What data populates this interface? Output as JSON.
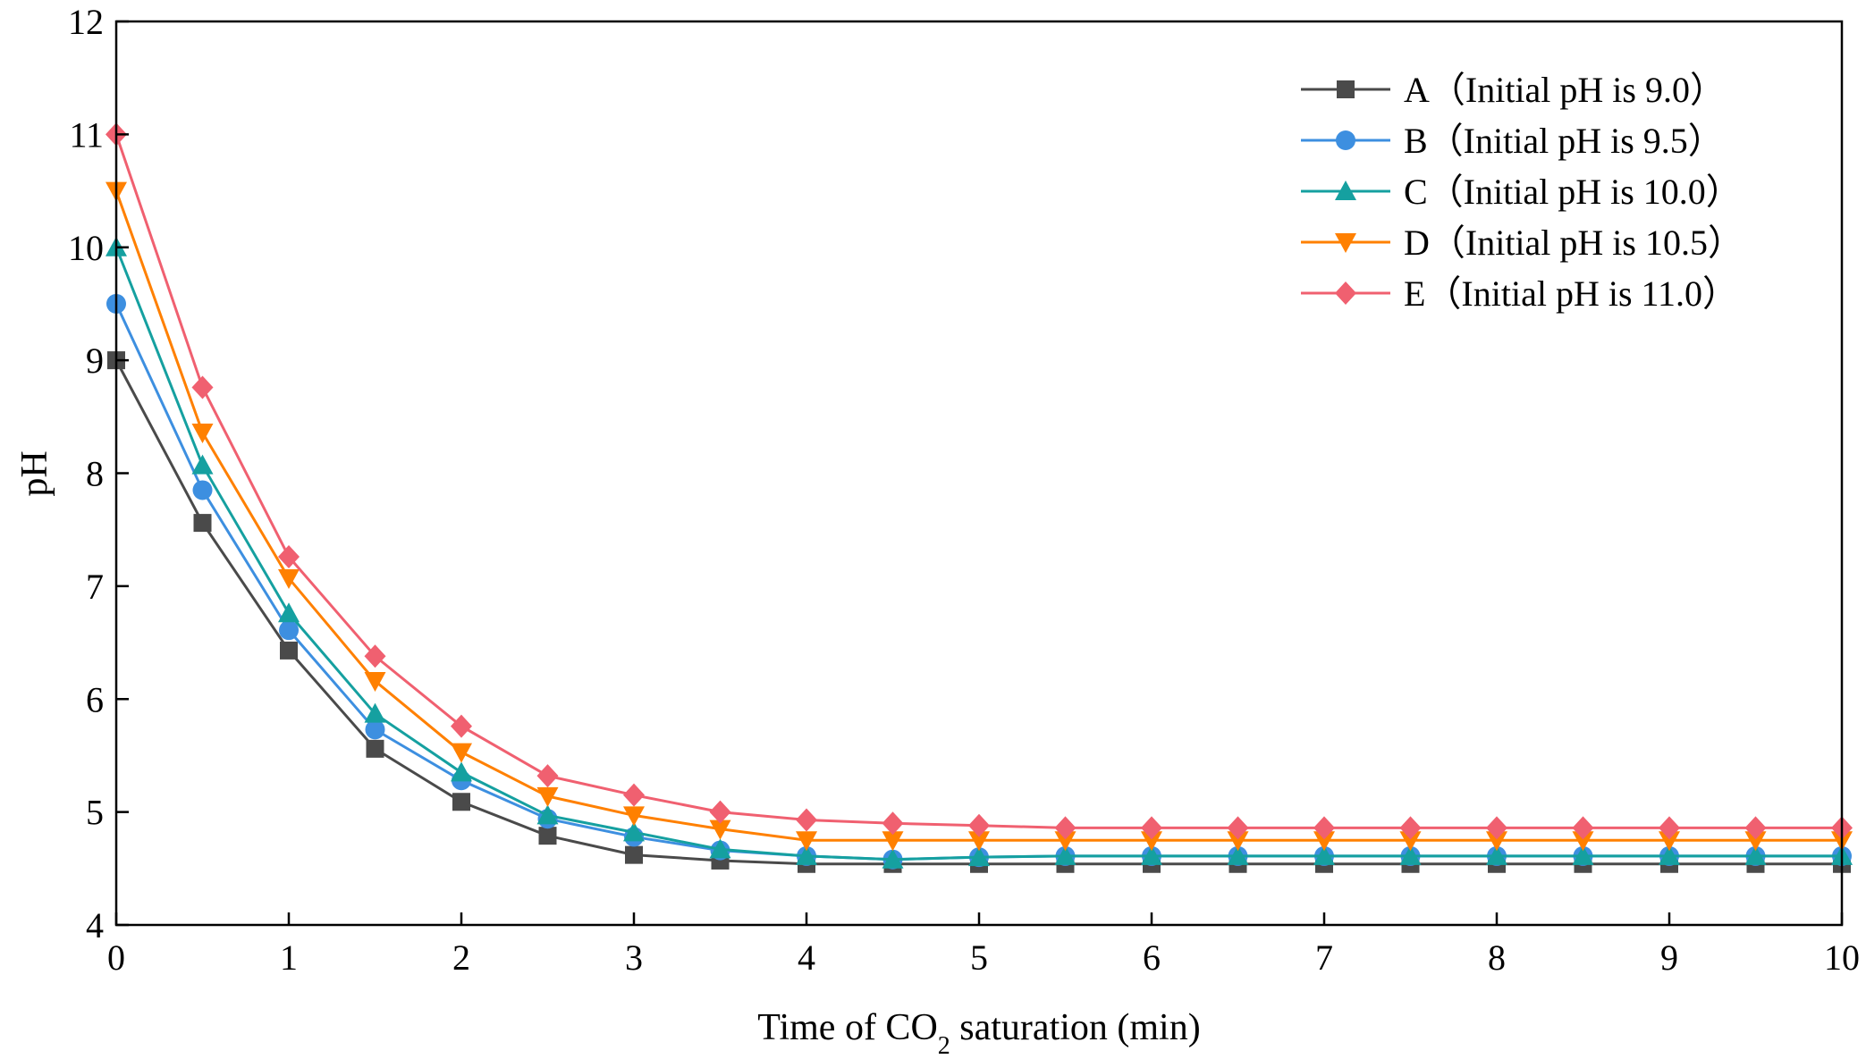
{
  "chart_data": {
    "type": "line",
    "xlabel_parts": [
      "Time of CO",
      "2",
      " saturation (min)"
    ],
    "ylabel": "pH",
    "xlim": [
      0,
      10
    ],
    "ylim": [
      4,
      12
    ],
    "xticks": [
      0,
      1,
      2,
      3,
      4,
      5,
      6,
      7,
      8,
      9,
      10
    ],
    "yticks": [
      4,
      5,
      6,
      7,
      8,
      9,
      10,
      11,
      12
    ],
    "grid": false,
    "legend_position": "top-right",
    "x": [
      0,
      0.5,
      1,
      1.5,
      2,
      2.5,
      3,
      3.5,
      4,
      4.5,
      5,
      5.5,
      6,
      6.5,
      7,
      7.5,
      8,
      8.5,
      9,
      9.5,
      10
    ],
    "series": [
      {
        "name": "A（Initial pH is 9.0）",
        "marker": "square",
        "color": "#4a4a4a",
        "values": [
          9.0,
          7.56,
          6.43,
          5.56,
          5.09,
          4.79,
          4.62,
          4.57,
          4.54,
          4.54,
          4.54,
          4.54,
          4.54,
          4.54,
          4.54,
          4.54,
          4.54,
          4.54,
          4.54,
          4.54,
          4.54
        ]
      },
      {
        "name": "B（Initial pH is 9.5）",
        "marker": "circle",
        "color": "#3d8fe0",
        "values": [
          9.5,
          7.85,
          6.61,
          5.73,
          5.28,
          4.94,
          4.78,
          4.66,
          4.61,
          4.58,
          4.6,
          4.61,
          4.61,
          4.61,
          4.61,
          4.61,
          4.61,
          4.61,
          4.61,
          4.61,
          4.61
        ]
      },
      {
        "name": "C（Initial pH is 10.0）",
        "marker": "triangle-up",
        "color": "#15a0a0",
        "values": [
          10.0,
          8.07,
          6.76,
          5.87,
          5.35,
          4.97,
          4.82,
          4.67,
          4.61,
          4.58,
          4.6,
          4.61,
          4.61,
          4.61,
          4.61,
          4.61,
          4.61,
          4.61,
          4.61,
          4.61,
          4.61
        ]
      },
      {
        "name": "D（Initial pH is 10.5）",
        "marker": "triangle-down",
        "color": "#ff8000",
        "values": [
          10.5,
          8.36,
          7.07,
          6.16,
          5.53,
          5.14,
          4.97,
          4.85,
          4.75,
          4.75,
          4.75,
          4.75,
          4.75,
          4.75,
          4.75,
          4.75,
          4.75,
          4.75,
          4.75,
          4.75,
          4.75
        ]
      },
      {
        "name": "E（Initial pH is 11.0）",
        "marker": "diamond",
        "color": "#f06070",
        "values": [
          11.0,
          8.76,
          7.26,
          6.38,
          5.76,
          5.32,
          5.15,
          5.0,
          4.93,
          4.9,
          4.88,
          4.86,
          4.86,
          4.86,
          4.86,
          4.86,
          4.86,
          4.86,
          4.86,
          4.86,
          4.86
        ]
      }
    ]
  }
}
